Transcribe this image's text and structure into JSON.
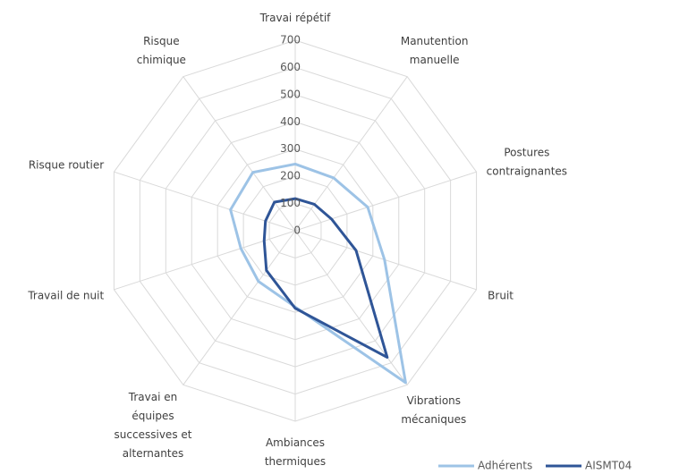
{
  "chart_data": {
    "type": "radar",
    "categories": [
      "Travai répétif",
      "Manutention\nmanuelle",
      "Postures\ncontraignantes",
      "Bruit",
      "Vibrations\nmécaniques",
      "Ambiances\nthermiques",
      "Travai en\néquipes\nsuccessives et\nalternantes",
      "Travail de nuit",
      "Risque routier",
      "Risque\nchimique"
    ],
    "series": [
      {
        "name": "Adhérents",
        "color": "#9dc3e6",
        "values": [
          245,
          240,
          280,
          345,
          690,
          280,
          230,
          210,
          250,
          265
        ]
      },
      {
        "name": "AISMT04",
        "color": "#2f5597",
        "values": [
          118,
          120,
          140,
          235,
          575,
          285,
          180,
          120,
          115,
          130
        ]
      }
    ],
    "ylim": [
      0,
      700
    ],
    "yticks": [
      0,
      100,
      200,
      300,
      400,
      500,
      600,
      700
    ],
    "grid": true,
    "legend": "bottom-right"
  }
}
